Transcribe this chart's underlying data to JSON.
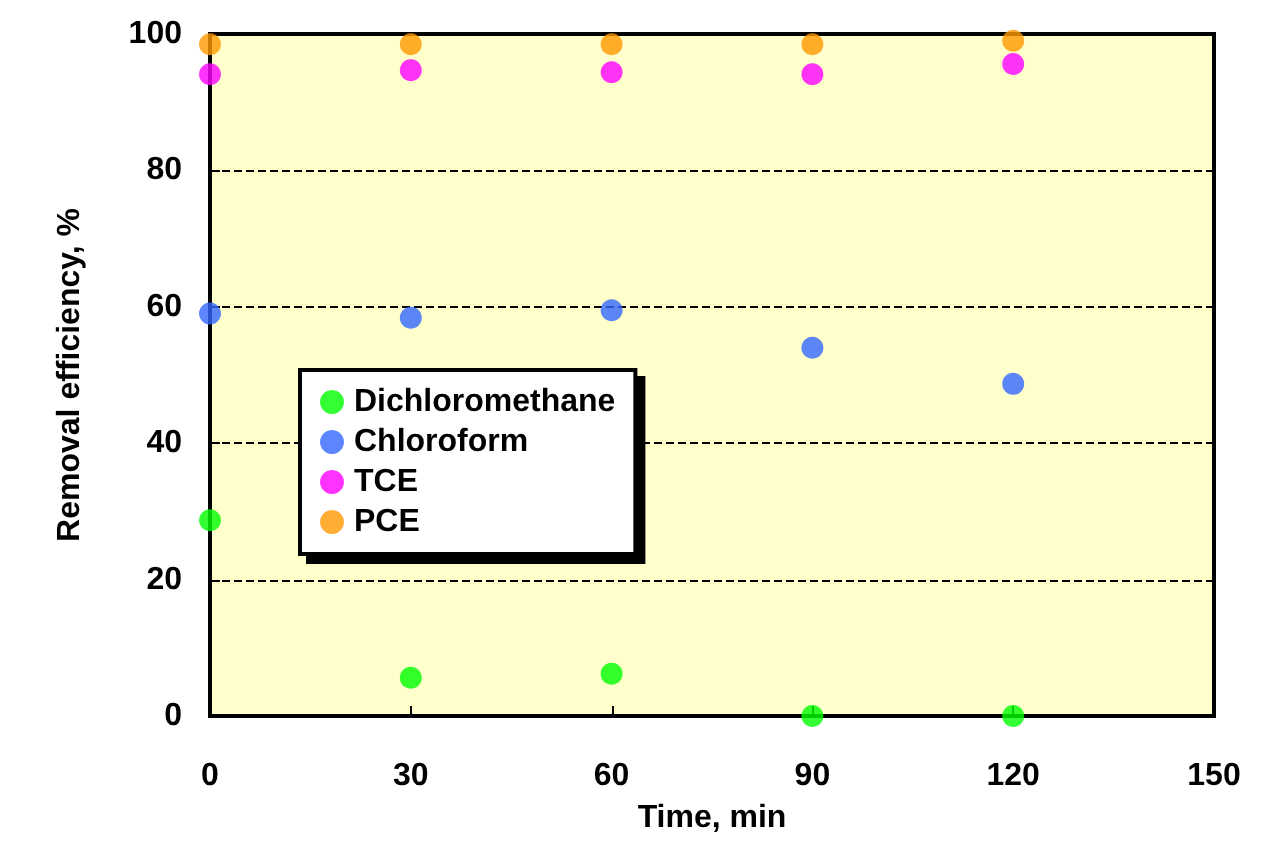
{
  "chart_data": {
    "type": "scatter",
    "xlabel": "Time, min",
    "ylabel": "Removal efficiency, %",
    "x": [
      0,
      30,
      60,
      90,
      120
    ],
    "series": [
      {
        "name": "Dichloromethane",
        "color": "#00ff00",
        "values": [
          28.7,
          5.6,
          6.2,
          0,
          0
        ]
      },
      {
        "name": "Chloroform",
        "color": "#3366ff",
        "values": [
          59,
          58.4,
          59.5,
          54,
          48.7
        ]
      },
      {
        "name": "TCE",
        "color": "#ff00ff",
        "values": [
          94.1,
          94.7,
          94.4,
          94.1,
          95.6
        ]
      },
      {
        "name": "PCE",
        "color": "#ff9900",
        "values": [
          98.5,
          98.5,
          98.5,
          98.5,
          99
        ]
      }
    ],
    "xlim": [
      0,
      150
    ],
    "xticks": [
      0,
      30,
      60,
      90,
      120,
      150
    ],
    "ylim": [
      0,
      100
    ],
    "yticks": [
      0,
      20,
      40,
      60,
      80,
      100
    ],
    "grid": "y",
    "line_style": "dashed",
    "legend": "left",
    "marker": "circle"
  }
}
